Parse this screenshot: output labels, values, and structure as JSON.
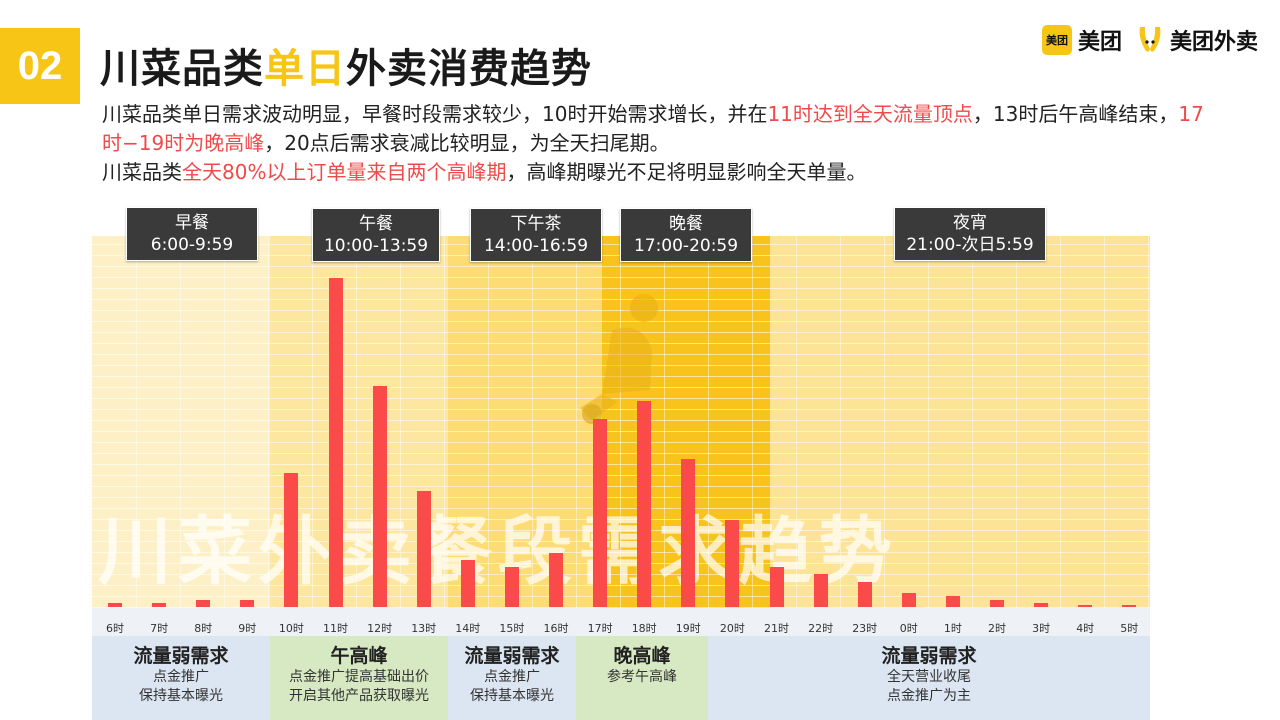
{
  "header": {
    "number": "02",
    "title_part1": "川菜品类",
    "title_highlight": "单日",
    "title_part2": "外卖消费趋势"
  },
  "logos": {
    "meituan_box": "美团",
    "meituan_text": "美团",
    "waimai_text": "美团外卖"
  },
  "description": {
    "line1_a": "川菜品类单日需求波动明显，早餐时段需求较少，10时开始需求增长，并在",
    "line1_red": "11时达到全天流量顶点",
    "line1_b": "，13时后午高峰结束，",
    "line1_red2": "17时−19时为晚高峰",
    "line1_c": "，20点后需求衰减比较明显，为全天扫尾期。",
    "line2_a": "川菜品类",
    "line2_red": "全天80%以上订单量来自两个高峰期",
    "line2_b": "，高峰期曝光不足将明显影响全天单量。"
  },
  "watermark": "川菜外卖餐段需求趋势",
  "periods": [
    {
      "name": "早餐",
      "time": "6:00-9:59"
    },
    {
      "name": "午餐",
      "time": "10:00-13:59"
    },
    {
      "name": "下午茶",
      "time": "14:00-16:59"
    },
    {
      "name": "晚餐",
      "time": "17:00-20:59"
    },
    {
      "name": "夜宵",
      "time": "21:00-次日5:59"
    }
  ],
  "sections": [
    {
      "title": "流量弱需求",
      "lines": [
        "点金推广",
        "保持基本曝光"
      ]
    },
    {
      "title": "午高峰",
      "lines": [
        "点金推广提高基础出价",
        "开启其他产品获取曝光"
      ]
    },
    {
      "title": "流量弱需求",
      "lines": [
        "点金推广",
        "保持基本曝光"
      ]
    },
    {
      "title": "晚高峰",
      "lines": [
        "参考午高峰"
      ]
    },
    {
      "title": "流量弱需求",
      "lines": [
        "全天营业收尾",
        "点金推广为主"
      ]
    }
  ],
  "colors": {
    "accent": "#f6c516",
    "bar": "#fa4a4a",
    "highlight_text": "#f04a4a",
    "section_blue": "#dce6f2",
    "section_green": "#d7e9c2"
  },
  "chart_data": {
    "type": "bar",
    "categories": [
      "6时",
      "7时",
      "8时",
      "9时",
      "10时",
      "11时",
      "12时",
      "13时",
      "14时",
      "15时",
      "16时",
      "17时",
      "18时",
      "19时",
      "20时",
      "21时",
      "22时",
      "23时",
      "0时",
      "1时",
      "2时",
      "3时",
      "4时",
      "5时"
    ],
    "values": [
      1,
      1,
      2,
      2,
      37,
      91,
      61,
      32,
      13,
      11,
      15,
      52,
      57,
      41,
      24,
      11,
      9,
      7,
      4,
      3,
      2,
      1,
      0.5,
      0.5
    ],
    "ylim": [
      0,
      100
    ],
    "title": "",
    "xlabel": "",
    "ylabel": ""
  }
}
